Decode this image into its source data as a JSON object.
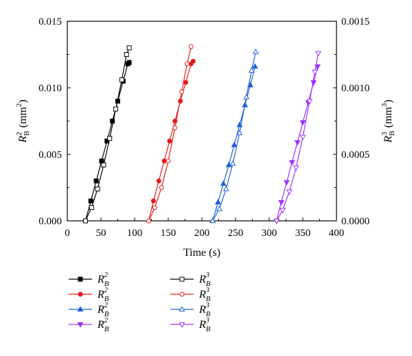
{
  "chart_data": {
    "type": "line",
    "xlabel": "Time (s)",
    "ylabel_left": "R_B^2 (mm^2)",
    "ylabel_right": "R_B^3 (mm^3)",
    "xlim": [
      0,
      400
    ],
    "ylim_left": [
      0,
      0.015
    ],
    "ylim_right": [
      0,
      0.0015
    ],
    "x_ticks": [
      "0",
      "50",
      "100",
      "150",
      "200",
      "250",
      "300",
      "350",
      "400"
    ],
    "y_left_ticks": [
      "0.000",
      "0.005",
      "0.010",
      "0.015"
    ],
    "y_right_ticks": [
      "0.0000",
      "0.0005",
      "0.0010",
      "0.0015"
    ],
    "grid": false,
    "legend_placement": "below",
    "series": [
      {
        "name": "R_B^2",
        "axis": "left",
        "color": "#000000",
        "marker": "square-filled",
        "x": [
          27,
          35,
          43,
          51,
          59,
          67,
          75,
          83,
          90,
          92
        ],
        "y": [
          0.0,
          0.0015,
          0.003,
          0.0045,
          0.006,
          0.0075,
          0.009,
          0.0105,
          0.0118,
          0.0119
        ]
      },
      {
        "name": "R_B^3",
        "axis": "right",
        "color": "#000000",
        "marker": "square-open",
        "x": [
          27,
          36,
          45,
          54,
          63,
          72,
          81,
          88,
          92
        ],
        "y": [
          0.0,
          0.0001,
          0.00024,
          0.00042,
          0.00062,
          0.00084,
          0.00106,
          0.00125,
          0.0013
        ]
      },
      {
        "name": "R_B^2",
        "axis": "left",
        "color": "#e41a1c",
        "marker": "circle-filled",
        "x": [
          121,
          128,
          136,
          144,
          152,
          160,
          168,
          176,
          184,
          187
        ],
        "y": [
          0.0,
          0.0015,
          0.003,
          0.0045,
          0.006,
          0.0075,
          0.009,
          0.0104,
          0.0118,
          0.012
        ]
      },
      {
        "name": "R_B^3",
        "axis": "right",
        "color": "#e41a1c",
        "marker": "circle-open",
        "x": [
          121,
          130,
          140,
          150,
          160,
          170,
          178,
          184
        ],
        "y": [
          0.0,
          0.0001,
          0.00025,
          0.00045,
          0.0007,
          0.00097,
          0.00118,
          0.00131
        ]
      },
      {
        "name": "R_B^2",
        "axis": "left",
        "color": "#1f5fd6",
        "marker": "triangle-up-filled",
        "x": [
          216,
          224,
          232,
          240,
          248,
          256,
          264,
          272,
          279
        ],
        "y": [
          0.0,
          0.0014,
          0.0028,
          0.0042,
          0.0057,
          0.0072,
          0.0087,
          0.0102,
          0.0116
        ]
      },
      {
        "name": "R_B^3",
        "axis": "right",
        "color": "#1f5fd6",
        "marker": "triangle-up-open",
        "x": [
          216,
          226,
          236,
          246,
          256,
          266,
          274,
          280
        ],
        "y": [
          0.0,
          9e-05,
          0.00024,
          0.00043,
          0.00066,
          0.00093,
          0.00113,
          0.00127
        ]
      },
      {
        "name": "R_B^2",
        "axis": "left",
        "color": "#9b30ff",
        "marker": "triangle-down-filled",
        "x": [
          311,
          318,
          326,
          334,
          342,
          350,
          358,
          366,
          372
        ],
        "y": [
          0.0,
          0.0014,
          0.0029,
          0.0044,
          0.0059,
          0.0074,
          0.0089,
          0.0104,
          0.0116
        ]
      },
      {
        "name": "R_B^3",
        "axis": "right",
        "color": "#9b30ff",
        "marker": "triangle-down-open",
        "x": [
          311,
          320,
          330,
          340,
          350,
          360,
          368,
          373
        ],
        "y": [
          0.0,
          8e-05,
          0.00022,
          0.0004,
          0.00063,
          0.0009,
          0.00112,
          0.00126
        ]
      }
    ]
  }
}
